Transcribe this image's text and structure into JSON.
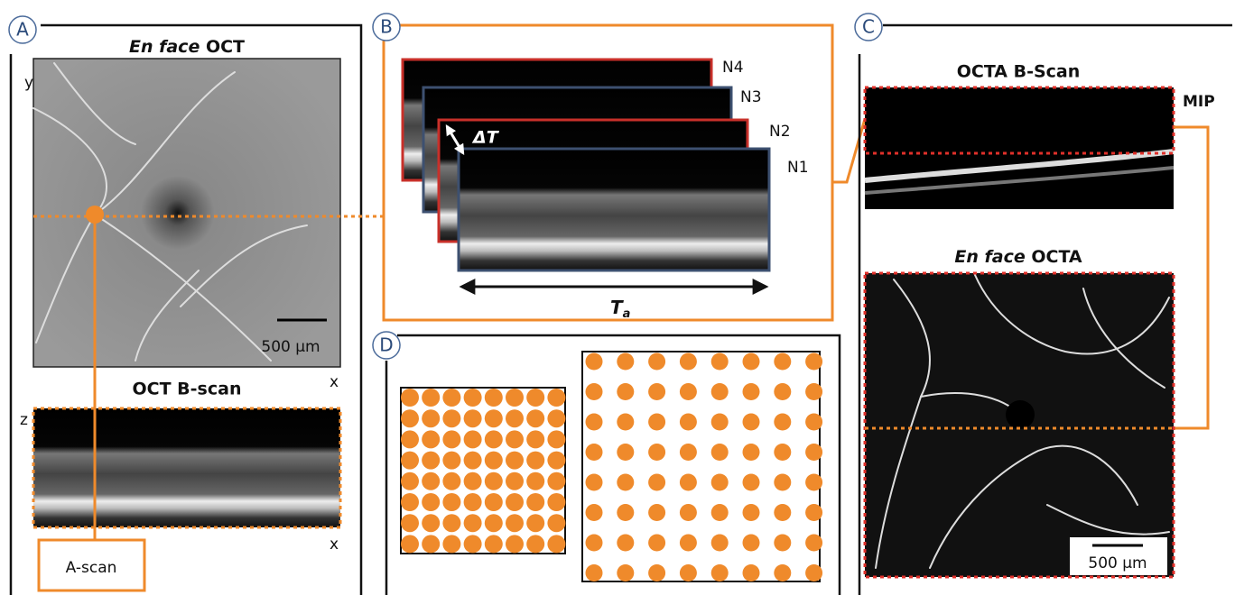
{
  "panels": {
    "a": {
      "label": "A",
      "title_italic": "En face",
      "title": "OCT",
      "y_axis": "y",
      "x_axis": "x",
      "scale_bar": "500 μm",
      "bscan_title": "OCT B-scan",
      "z_axis": "z",
      "bscan_x_axis": "x",
      "ascan": "A-scan"
    },
    "b": {
      "label": "B",
      "frames": [
        "N4",
        "N3",
        "N2",
        "N1"
      ],
      "delta_t": "ΔT",
      "time_symbol": "T",
      "time_subscript": "a"
    },
    "c": {
      "label": "C",
      "bscan_title": "OCTA B-Scan",
      "mip": "MIP",
      "title_italic": "En face",
      "title": "OCTA",
      "scale_bar": "500 μm"
    },
    "d": {
      "label": "D"
    }
  }
}
